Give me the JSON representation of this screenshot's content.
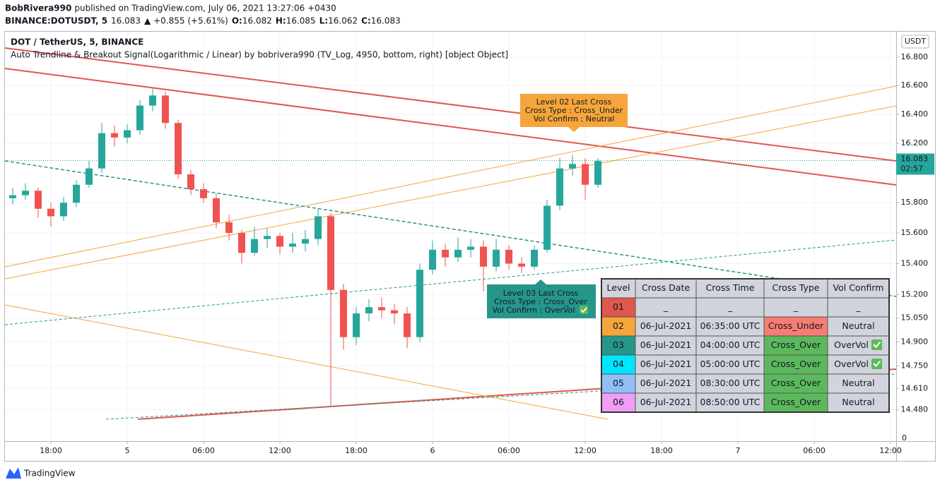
{
  "header": {
    "author": "BobRivera990",
    "published": "published on TradingView.com, July 06, 2021 13:27:06 +0430",
    "symbol": "BINANCE:DOTUSDT, 5",
    "price": "16.083",
    "change": "▲ +0.855 (+5.61%)",
    "ohlc": [
      {
        "label": "O:",
        "value": "16.082"
      },
      {
        "label": "H:",
        "value": "16.085"
      },
      {
        "label": "L:",
        "value": "16.062"
      },
      {
        "label": "C:",
        "value": "16.083"
      }
    ]
  },
  "chart_data": {
    "type": "candlestick",
    "title": "DOT / TetherUS, 5, BINANCE",
    "subtitle": "Auto Trendline & Breakout Signal(Logarithmic / Linear) by bobrivera990 (TV_Log, 4950, bottom, right) [object Object]",
    "currency": "USDT",
    "log_scale": true,
    "grid": true,
    "up_color": "#26a69a",
    "down_color": "#ef5350",
    "x": [
      -3,
      -2,
      -1,
      0,
      1,
      2,
      3,
      4,
      5,
      6,
      7,
      8,
      9,
      10,
      11,
      12,
      13,
      14,
      15,
      16,
      17,
      18,
      19,
      20,
      21,
      22,
      23,
      24,
      25,
      26,
      27,
      28,
      29,
      30,
      31,
      32,
      33,
      34,
      35,
      36,
      37,
      38,
      39,
      40,
      41,
      42,
      43
    ],
    "open": [
      15.83,
      15.85,
      15.88,
      15.76,
      15.71,
      15.8,
      15.92,
      16.03,
      16.27,
      16.24,
      16.29,
      16.46,
      16.53,
      16.34,
      15.99,
      15.89,
      15.83,
      15.67,
      15.6,
      15.47,
      15.56,
      15.58,
      15.51,
      15.53,
      15.56,
      15.71,
      15.23,
      14.93,
      15.08,
      15.12,
      15.1,
      15.08,
      14.93,
      15.36,
      15.49,
      15.44,
      15.49,
      15.51,
      15.38,
      15.49,
      15.4,
      15.38,
      15.49,
      15.78,
      16.03,
      16.06,
      15.92
    ],
    "high": [
      15.9,
      15.93,
      15.9,
      15.8,
      15.84,
      15.95,
      16.08,
      16.34,
      16.32,
      16.33,
      16.5,
      16.58,
      16.56,
      16.36,
      16.02,
      15.93,
      15.86,
      15.72,
      15.62,
      15.64,
      15.63,
      15.6,
      15.6,
      15.62,
      15.76,
      15.73,
      15.27,
      15.12,
      15.17,
      15.18,
      15.14,
      15.12,
      15.4,
      15.55,
      15.53,
      15.57,
      15.56,
      15.55,
      15.56,
      15.52,
      15.44,
      15.52,
      15.82,
      16.1,
      16.12,
      16.1,
      16.1
    ],
    "low": [
      15.79,
      15.82,
      15.7,
      15.64,
      15.68,
      15.77,
      15.9,
      16.0,
      16.18,
      16.2,
      16.26,
      16.42,
      16.3,
      15.96,
      15.85,
      15.8,
      15.63,
      15.55,
      15.4,
      15.45,
      15.5,
      15.46,
      15.47,
      15.48,
      15.52,
      14.5,
      14.85,
      14.88,
      15.03,
      15.05,
      15.01,
      14.86,
      14.9,
      15.33,
      15.38,
      15.41,
      15.44,
      15.22,
      15.35,
      15.36,
      15.34,
      15.36,
      15.47,
      15.75,
      15.98,
      15.82,
      15.9
    ],
    "close": [
      15.85,
      15.88,
      15.76,
      15.71,
      15.8,
      15.92,
      16.03,
      16.27,
      16.24,
      16.29,
      16.46,
      16.53,
      16.34,
      15.99,
      15.89,
      15.83,
      15.67,
      15.6,
      15.47,
      15.56,
      15.58,
      15.51,
      15.53,
      15.56,
      15.71,
      15.23,
      14.93,
      15.08,
      15.12,
      15.1,
      15.08,
      14.93,
      15.36,
      15.49,
      15.44,
      15.49,
      15.51,
      15.38,
      15.49,
      15.4,
      15.38,
      15.49,
      15.78,
      16.03,
      16.06,
      15.92,
      16.08
    ],
    "last_price": 16.083,
    "countdown": "02:57",
    "price_scale_bottom_label": "0",
    "xlim": [
      -3.61,
      66.44
    ],
    "xticks": [
      {
        "value": 0,
        "label": "18:00"
      },
      {
        "value": 6,
        "label": "5"
      },
      {
        "value": 12,
        "label": "06:00"
      },
      {
        "value": 18,
        "label": "12:00"
      },
      {
        "value": 24,
        "label": "18:00"
      },
      {
        "value": 30,
        "label": "6"
      },
      {
        "value": 36,
        "label": "06:00"
      },
      {
        "value": 42,
        "label": "12:00"
      },
      {
        "value": 48,
        "label": "18:00"
      },
      {
        "value": 54,
        "label": "7"
      },
      {
        "value": 60,
        "label": "06:00"
      },
      {
        "value": 66,
        "label": "12:00"
      }
    ],
    "ylim": [
      14.29,
      16.98
    ],
    "yticks": [
      {
        "value": 16.8,
        "label": "16.800"
      },
      {
        "value": 16.6,
        "label": "16.600"
      },
      {
        "value": 16.4,
        "label": "16.400"
      },
      {
        "value": 16.2,
        "label": "16.200"
      },
      {
        "value": 15.8,
        "label": "15.800"
      },
      {
        "value": 15.6,
        "label": "15.600"
      },
      {
        "value": 15.4,
        "label": "15.400"
      },
      {
        "value": 15.2,
        "label": "15.200"
      },
      {
        "value": 15.05,
        "label": "15.050"
      },
      {
        "value": 14.9,
        "label": "14.900"
      },
      {
        "value": 14.75,
        "label": "14.750"
      },
      {
        "value": 14.61,
        "label": "14.610"
      },
      {
        "value": 14.48,
        "label": "14.480"
      }
    ]
  },
  "annotations": [
    {
      "lines": [
        "Level 02 Last Cross",
        "Cross Type : Cross_Under",
        "Vol Confirm : Neutral"
      ]
    },
    {
      "lines": [
        "Level 03 Last Cross",
        "Cross Type : Cross_Over",
        "Vol Confirm : OverVol"
      ]
    }
  ],
  "table": {
    "columns": [
      "Level",
      "Cross Date",
      "Cross Time",
      "Cross Type",
      "Vol Confirm"
    ],
    "rows": [
      [
        "01",
        "_",
        "_",
        "_",
        "_"
      ],
      [
        "02",
        "06-Jul-2021",
        "06:35:00 UTC",
        "Cross_Under",
        "Neutral"
      ],
      [
        "03",
        "06-Jul-2021",
        "04:00:00 UTC",
        "Cross_Over",
        "OverVol"
      ],
      [
        "04",
        "06-Jul-2021",
        "05:00:00 UTC",
        "Cross_Over",
        "OverVol"
      ],
      [
        "05",
        "06-Jul-2021",
        "08:30:00 UTC",
        "Cross_Over",
        "Neutral"
      ],
      [
        "06",
        "06-Jul-2021",
        "08:50:00 UTC",
        "Cross_Over",
        "Neutral"
      ]
    ],
    "level_colors": [
      "#e0574f",
      "#f5a53a",
      "#26968a",
      "#00e5ff",
      "#90bff5",
      "#ee9ef5"
    ],
    "type_colors": [
      "#d1d4dc",
      "#f77c73",
      "#5cb85c",
      "#5cb85c",
      "#5cb85c",
      "#5cb85c"
    ]
  },
  "footer": {
    "brand": "TradingView"
  }
}
